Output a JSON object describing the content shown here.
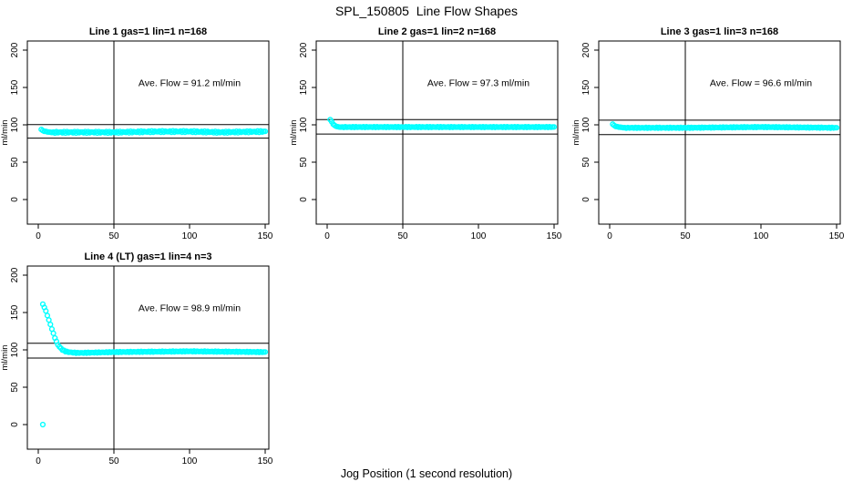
{
  "title": "SPL_150805  Line Flow Shapes",
  "xlabel": "Jog Position (1 second resolution)",
  "colors": {
    "points": "#00FFFF",
    "axis": "#000000",
    "background": "#FFFFFF"
  },
  "chart_data": [
    {
      "type": "scatter",
      "title": "Line 1 gas=1 lin=1 n=168",
      "ylabel": "ml/min",
      "annotation": "Ave. Flow =  91.2  ml/min",
      "ave_flow": 91.2,
      "xlim": [
        0,
        150
      ],
      "ylim": [
        0,
        200
      ],
      "xticks": [
        0,
        50,
        100,
        150
      ],
      "yticks": [
        0,
        50,
        100,
        150,
        200
      ],
      "vline_x": 50,
      "hlines": [
        100.3,
        82.1
      ],
      "x_start": 2,
      "x_end": 150,
      "x_step": 1,
      "noise_amp": 1.0,
      "series_keypoints": [
        [
          2,
          94
        ],
        [
          3,
          92
        ],
        [
          5,
          91
        ],
        [
          8,
          90
        ],
        [
          20,
          90
        ],
        [
          50,
          90
        ],
        [
          80,
          91
        ],
        [
          100,
          91
        ],
        [
          120,
          90
        ],
        [
          150,
          91
        ]
      ],
      "outliers": []
    },
    {
      "type": "scatter",
      "title": "Line 2 gas=1 lin=2 n=168",
      "ylabel": "ml/min",
      "annotation": "Ave. Flow =  97.3  ml/min",
      "ave_flow": 97.3,
      "xlim": [
        0,
        150
      ],
      "ylim": [
        0,
        200
      ],
      "xticks": [
        0,
        50,
        100,
        150
      ],
      "yticks": [
        0,
        50,
        100,
        150,
        200
      ],
      "vline_x": 50,
      "hlines": [
        107.0,
        87.6
      ],
      "x_start": 2,
      "x_end": 150,
      "x_step": 1,
      "noise_amp": 0.5,
      "series_keypoints": [
        [
          2,
          107
        ],
        [
          3,
          104
        ],
        [
          4,
          101
        ],
        [
          5,
          99
        ],
        [
          6,
          98
        ],
        [
          8,
          97
        ],
        [
          15,
          97
        ],
        [
          50,
          97
        ],
        [
          100,
          97
        ],
        [
          150,
          97
        ]
      ],
      "outliers": []
    },
    {
      "type": "scatter",
      "title": "Line 3 gas=1 lin=3 n=168",
      "ylabel": "ml/min",
      "annotation": "Ave. Flow =  96.6  ml/min",
      "ave_flow": 96.6,
      "xlim": [
        0,
        150
      ],
      "ylim": [
        0,
        200
      ],
      "xticks": [
        0,
        50,
        100,
        150
      ],
      "yticks": [
        0,
        50,
        100,
        150,
        200
      ],
      "vline_x": 50,
      "hlines": [
        106.3,
        86.9
      ],
      "x_start": 2,
      "x_end": 150,
      "x_step": 1,
      "noise_amp": 0.5,
      "series_keypoints": [
        [
          2,
          101
        ],
        [
          3,
          99
        ],
        [
          4,
          98
        ],
        [
          6,
          97
        ],
        [
          10,
          96
        ],
        [
          50,
          96
        ],
        [
          100,
          97
        ],
        [
          150,
          96
        ]
      ],
      "outliers": []
    },
    {
      "type": "scatter",
      "title": "Line 4 (LT) gas=1 lin=4 n=3",
      "ylabel": "ml/min",
      "annotation": "Ave. Flow =  98.9  ml/min",
      "ave_flow": 98.9,
      "xlim": [
        0,
        150
      ],
      "ylim": [
        0,
        200
      ],
      "xticks": [
        0,
        50,
        100,
        150
      ],
      "yticks": [
        0,
        50,
        100,
        150,
        200
      ],
      "vline_x": 50,
      "hlines": [
        108.8,
        89.0
      ],
      "x_start": 3,
      "x_end": 150,
      "x_step": 1,
      "noise_amp": 0.5,
      "series_keypoints": [
        [
          3,
          161
        ],
        [
          4,
          157
        ],
        [
          5,
          152
        ],
        [
          6,
          146
        ],
        [
          7,
          140
        ],
        [
          8,
          134
        ],
        [
          9,
          128
        ],
        [
          10,
          122
        ],
        [
          11,
          116
        ],
        [
          12,
          111
        ],
        [
          13,
          107
        ],
        [
          14,
          104
        ],
        [
          15,
          102
        ],
        [
          16,
          100
        ],
        [
          17,
          99
        ],
        [
          18,
          98
        ],
        [
          20,
          97
        ],
        [
          25,
          96
        ],
        [
          30,
          96
        ],
        [
          50,
          97
        ],
        [
          100,
          98
        ],
        [
          150,
          97
        ]
      ],
      "outliers": [
        [
          3,
          0
        ]
      ]
    }
  ]
}
